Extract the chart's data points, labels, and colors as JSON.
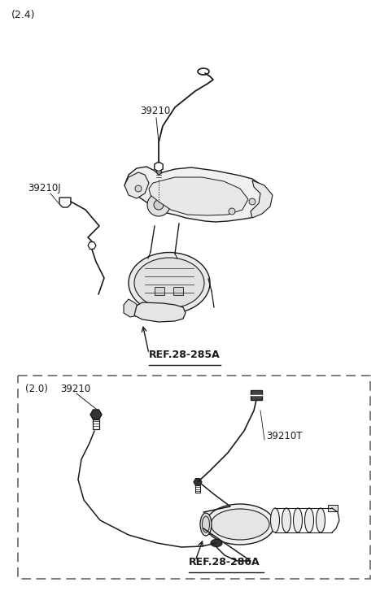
{
  "background_color": "#ffffff",
  "fig_width": 4.67,
  "fig_height": 7.27,
  "dpi": 100,
  "label_24": "(2.4)",
  "label_20": "(2.0)",
  "part_39210": "39210",
  "part_39210J": "39210J",
  "part_39210T": "39210T",
  "ref_285A": "REF.28-285A",
  "ref_286A": "REF.28-286A",
  "line_color": "#1a1a1a",
  "dash_box_color": "#666666",
  "text_color": "#1a1a1a",
  "gray_fill": "#d8d8d8"
}
